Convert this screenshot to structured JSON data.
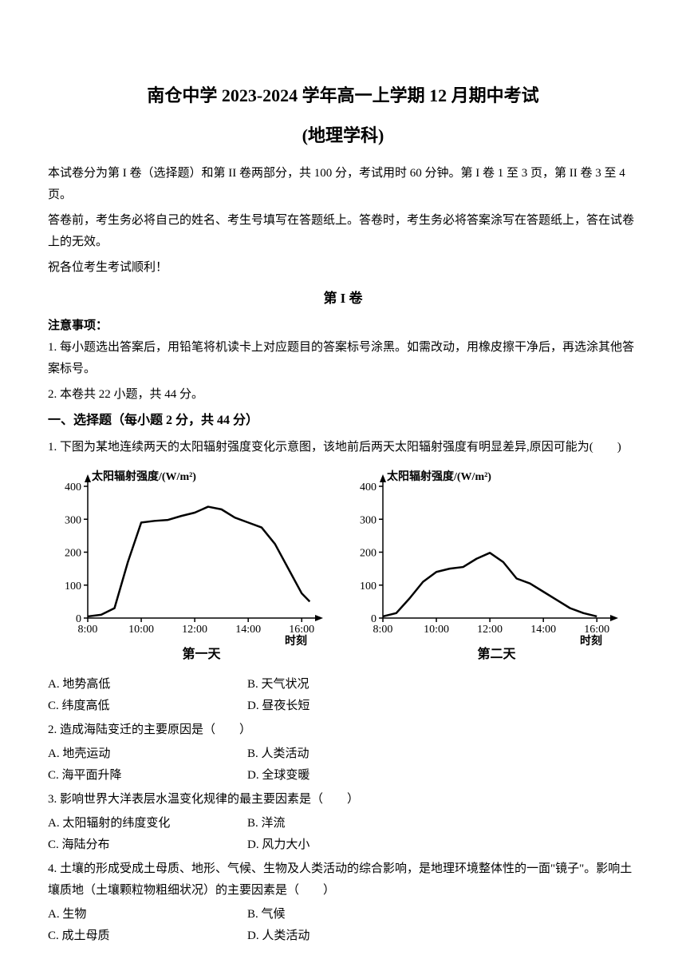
{
  "header": {
    "title": "南仓中学 2023-2024 学年高一上学期 12 月期中考试",
    "subtitle": "(地理学科)"
  },
  "intro": {
    "line1": "本试卷分为第 I 卷（选择题）和第 II 卷两部分，共 100 分，考试用时 60 分钟。第 I 卷 1 至 3 页，第 II 卷 3 至 4 页。",
    "line2": "答卷前，考生务必将自己的姓名、考生号填写在答题纸上。答卷时，考生务必将答案涂写在答题纸上，答在试卷上的无效。",
    "line3": "祝各位考生考试顺利！"
  },
  "part1": {
    "title": "第 I 卷",
    "notice_header": "注意事项：",
    "notice1": "1. 每小题选出答案后，用铅笔将机读卡上对应题目的答案标号涂黑。如需改动，用橡皮擦干净后，再选涂其他答案标号。",
    "notice2": "2. 本卷共 22 小题，共 44 分。"
  },
  "section1": {
    "header": "一、选择题（每小题 2 分，共 44 分）"
  },
  "chart1": {
    "ylabel": "太阳辐射强度/(W/m²)",
    "ymax": 400,
    "ytick_step": 100,
    "xmin": "8:00",
    "xmax": "16:00",
    "xticks": [
      "8:00",
      "10:00",
      "12:00",
      "14:00",
      "16:00"
    ],
    "xlabel": "时刻",
    "caption": "第一天",
    "data": [
      {
        "x": 8,
        "y": 5
      },
      {
        "x": 8.5,
        "y": 10
      },
      {
        "x": 9,
        "y": 30
      },
      {
        "x": 9.5,
        "y": 170
      },
      {
        "x": 10,
        "y": 290
      },
      {
        "x": 10.5,
        "y": 295
      },
      {
        "x": 11,
        "y": 298
      },
      {
        "x": 11.5,
        "y": 310
      },
      {
        "x": 12,
        "y": 320
      },
      {
        "x": 12.5,
        "y": 338
      },
      {
        "x": 13,
        "y": 330
      },
      {
        "x": 13.5,
        "y": 305
      },
      {
        "x": 14,
        "y": 290
      },
      {
        "x": 14.5,
        "y": 275
      },
      {
        "x": 15,
        "y": 225
      },
      {
        "x": 15.5,
        "y": 150
      },
      {
        "x": 16,
        "y": 75
      },
      {
        "x": 16.3,
        "y": 50
      }
    ],
    "line_color": "#000000",
    "line_width": 2.5,
    "background": "#ffffff"
  },
  "chart2": {
    "ylabel": "太阳辐射强度/(W/m²)",
    "ymax": 400,
    "ytick_step": 100,
    "xmin": "8:00",
    "xmax": "16:00",
    "xticks": [
      "8:00",
      "10:00",
      "12:00",
      "14:00",
      "16:00"
    ],
    "xlabel": "时刻",
    "caption": "第二天",
    "data": [
      {
        "x": 8,
        "y": 5
      },
      {
        "x": 8.5,
        "y": 15
      },
      {
        "x": 9,
        "y": 60
      },
      {
        "x": 9.5,
        "y": 110
      },
      {
        "x": 10,
        "y": 140
      },
      {
        "x": 10.5,
        "y": 150
      },
      {
        "x": 11,
        "y": 155
      },
      {
        "x": 11.5,
        "y": 180
      },
      {
        "x": 12,
        "y": 198
      },
      {
        "x": 12.5,
        "y": 170
      },
      {
        "x": 13,
        "y": 120
      },
      {
        "x": 13.5,
        "y": 105
      },
      {
        "x": 14,
        "y": 80
      },
      {
        "x": 14.5,
        "y": 55
      },
      {
        "x": 15,
        "y": 30
      },
      {
        "x": 15.5,
        "y": 15
      },
      {
        "x": 16,
        "y": 5
      }
    ],
    "line_color": "#000000",
    "line_width": 2.5,
    "background": "#ffffff"
  },
  "q1": {
    "text": "1. 下图为某地连续两天的太阳辐射强度变化示意图，该地前后两天太阳辐射强度有明显差异,原因可能为(　　)",
    "a": "A. 地势高低",
    "b": "B. 天气状况",
    "c": "C. 纬度高低",
    "d": "D. 昼夜长短"
  },
  "q2": {
    "text": "2. 造成海陆变迁的主要原因是（　　）",
    "a": "A. 地壳运动",
    "b": "B. 人类活动",
    "c": "C. 海平面升降",
    "d": "D. 全球变暖"
  },
  "q3": {
    "text": "3. 影响世界大洋表层水温变化规律的最主要因素是（　　）",
    "a": "A. 太阳辐射的纬度变化",
    "b": "B. 洋流",
    "c": "C. 海陆分布",
    "d": "D. 风力大小"
  },
  "q4": {
    "text": "4. 土壤的形成受成土母质、地形、气候、生物及人类活动的综合影响，是地理环境整体性的一面\"镜子\"。影响土壤质地（土壤颗粒物粗细状况）的主要因素是（　　）",
    "a": "A. 生物",
    "b": "B. 气候",
    "c": "C. 成土母质",
    "d": "D. 人类活动"
  },
  "yaxis_ticks": [
    "0",
    "100",
    "200",
    "300",
    "400"
  ]
}
